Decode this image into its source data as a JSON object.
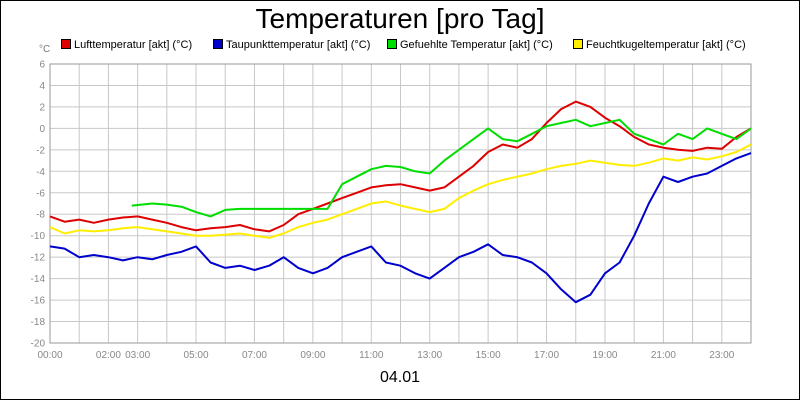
{
  "chart_data": {
    "type": "line",
    "title": "Temperaturen [pro Tag]",
    "unit": "°C",
    "date": "04.01",
    "xlim": [
      0,
      24
    ],
    "ylim": [
      -20,
      6
    ],
    "x_ticks": [
      0,
      2,
      3,
      5,
      7,
      9,
      11,
      13,
      15,
      17,
      19,
      21,
      23
    ],
    "x_tick_labels": [
      "00:00",
      "02:00",
      "03:00",
      "05:00",
      "07:00",
      "09:00",
      "11:00",
      "13:00",
      "15:00",
      "17:00",
      "19:00",
      "21:00",
      "23:00"
    ],
    "y_ticks": [
      6,
      4,
      2,
      0,
      -2,
      -4,
      -6,
      -8,
      -10,
      -12,
      -14,
      -16,
      -18,
      -20
    ],
    "y_tick_labels": [
      "6",
      "4",
      "2",
      "0",
      "-2",
      "-4",
      "-6",
      "-8",
      "-10",
      "-12",
      "-14",
      "-16",
      "-18",
      "-20"
    ],
    "grid": true,
    "legend_position": "top",
    "series": [
      {
        "name": "Lufttemperatur [akt] (°C)",
        "color": "#dd0000",
        "points": [
          [
            0,
            -8.2
          ],
          [
            0.5,
            -8.7
          ],
          [
            1,
            -8.5
          ],
          [
            1.5,
            -8.8
          ],
          [
            2,
            -8.5
          ],
          [
            2.5,
            -8.3
          ],
          [
            3,
            -8.2
          ],
          [
            3.5,
            -8.5
          ],
          [
            4,
            -8.8
          ],
          [
            4.5,
            -9.2
          ],
          [
            5,
            -9.5
          ],
          [
            5.5,
            -9.3
          ],
          [
            6,
            -9.2
          ],
          [
            6.5,
            -9.0
          ],
          [
            7,
            -9.4
          ],
          [
            7.5,
            -9.6
          ],
          [
            8,
            -9.0
          ],
          [
            8.5,
            -8.0
          ],
          [
            9,
            -7.5
          ],
          [
            9.5,
            -7.0
          ],
          [
            10,
            -6.5
          ],
          [
            10.5,
            -6.0
          ],
          [
            11,
            -5.5
          ],
          [
            11.5,
            -5.3
          ],
          [
            12,
            -5.2
          ],
          [
            12.5,
            -5.5
          ],
          [
            13,
            -5.8
          ],
          [
            13.5,
            -5.5
          ],
          [
            14,
            -4.5
          ],
          [
            14.5,
            -3.5
          ],
          [
            15,
            -2.2
          ],
          [
            15.5,
            -1.5
          ],
          [
            16,
            -1.8
          ],
          [
            16.5,
            -1.0
          ],
          [
            17,
            0.5
          ],
          [
            17.5,
            1.8
          ],
          [
            18,
            2.5
          ],
          [
            18.5,
            2.0
          ],
          [
            19,
            1.0
          ],
          [
            19.5,
            0.2
          ],
          [
            20,
            -0.8
          ],
          [
            20.5,
            -1.5
          ],
          [
            21,
            -1.8
          ],
          [
            21.5,
            -2.0
          ],
          [
            22,
            -2.1
          ],
          [
            22.5,
            -1.8
          ],
          [
            23,
            -1.9
          ],
          [
            23.5,
            -0.8
          ],
          [
            24,
            0
          ]
        ]
      },
      {
        "name": "Taupunkttemperatur [akt] (°C)",
        "color": "#0000cc",
        "points": [
          [
            0,
            -11.0
          ],
          [
            0.5,
            -11.2
          ],
          [
            1,
            -12.0
          ],
          [
            1.5,
            -11.8
          ],
          [
            2,
            -12.0
          ],
          [
            2.5,
            -12.3
          ],
          [
            3,
            -12.0
          ],
          [
            3.5,
            -12.2
          ],
          [
            4,
            -11.8
          ],
          [
            4.5,
            -11.5
          ],
          [
            5,
            -11.0
          ],
          [
            5.5,
            -12.5
          ],
          [
            6,
            -13.0
          ],
          [
            6.5,
            -12.8
          ],
          [
            7,
            -13.2
          ],
          [
            7.5,
            -12.8
          ],
          [
            8,
            -12.0
          ],
          [
            8.5,
            -13.0
          ],
          [
            9,
            -13.5
          ],
          [
            9.5,
            -13.0
          ],
          [
            10,
            -12.0
          ],
          [
            10.5,
            -11.5
          ],
          [
            11,
            -11.0
          ],
          [
            11.5,
            -12.5
          ],
          [
            12,
            -12.8
          ],
          [
            12.5,
            -13.5
          ],
          [
            13,
            -14.0
          ],
          [
            13.5,
            -13.0
          ],
          [
            14,
            -12.0
          ],
          [
            14.5,
            -11.5
          ],
          [
            15,
            -10.8
          ],
          [
            15.5,
            -11.8
          ],
          [
            16,
            -12.0
          ],
          [
            16.5,
            -12.5
          ],
          [
            17,
            -13.5
          ],
          [
            17.5,
            -15.0
          ],
          [
            18,
            -16.2
          ],
          [
            18.5,
            -15.5
          ],
          [
            19,
            -13.5
          ],
          [
            19.5,
            -12.5
          ],
          [
            20,
            -10.0
          ],
          [
            20.5,
            -7.0
          ],
          [
            21,
            -4.5
          ],
          [
            21.5,
            -5.0
          ],
          [
            22,
            -4.5
          ],
          [
            22.5,
            -4.2
          ],
          [
            23,
            -3.5
          ],
          [
            23.5,
            -2.8
          ],
          [
            24,
            -2.3
          ]
        ]
      },
      {
        "name": "Gefuehlte Temperatur [akt] (°C)",
        "color": "#00dd00",
        "points": [
          [
            2.8,
            -7.2
          ],
          [
            3.5,
            -7.0
          ],
          [
            4,
            -7.1
          ],
          [
            4.5,
            -7.3
          ],
          [
            5,
            -7.8
          ],
          [
            5.5,
            -8.2
          ],
          [
            6,
            -7.6
          ],
          [
            6.5,
            -7.5
          ],
          [
            9.5,
            -7.5
          ],
          [
            10,
            -5.2
          ],
          [
            10.5,
            -4.5
          ],
          [
            11,
            -3.8
          ],
          [
            11.5,
            -3.5
          ],
          [
            12,
            -3.6
          ],
          [
            12.5,
            -4.0
          ],
          [
            13,
            -4.2
          ],
          [
            13.5,
            -3.0
          ],
          [
            14,
            -2.0
          ],
          [
            14.5,
            -1.0
          ],
          [
            15,
            0.0
          ],
          [
            15.5,
            -1.0
          ],
          [
            16,
            -1.2
          ],
          [
            16.5,
            -0.5
          ],
          [
            17,
            0.2
          ],
          [
            17.5,
            0.5
          ],
          [
            18,
            0.8
          ],
          [
            18.5,
            0.2
          ],
          [
            19,
            0.5
          ],
          [
            19.5,
            0.8
          ],
          [
            20,
            -0.5
          ],
          [
            20.5,
            -1.0
          ],
          [
            21,
            -1.5
          ],
          [
            21.5,
            -0.5
          ],
          [
            22,
            -1.0
          ],
          [
            22.5,
            0.0
          ],
          [
            23,
            -0.5
          ],
          [
            23.5,
            -1.0
          ],
          [
            24,
            0.0
          ]
        ]
      },
      {
        "name": "Feuchtkugeltemperatur [akt] (°C)",
        "color": "#ffee00",
        "points": [
          [
            0,
            -9.2
          ],
          [
            0.5,
            -9.8
          ],
          [
            1,
            -9.5
          ],
          [
            1.5,
            -9.6
          ],
          [
            2,
            -9.5
          ],
          [
            2.5,
            -9.3
          ],
          [
            3,
            -9.2
          ],
          [
            3.5,
            -9.4
          ],
          [
            4,
            -9.6
          ],
          [
            4.5,
            -9.8
          ],
          [
            5,
            -10.0
          ],
          [
            5.5,
            -10.0
          ],
          [
            6,
            -9.9
          ],
          [
            6.5,
            -9.8
          ],
          [
            7,
            -10.0
          ],
          [
            7.5,
            -10.2
          ],
          [
            8,
            -9.8
          ],
          [
            8.5,
            -9.2
          ],
          [
            9,
            -8.8
          ],
          [
            9.5,
            -8.5
          ],
          [
            10,
            -8.0
          ],
          [
            10.5,
            -7.5
          ],
          [
            11,
            -7.0
          ],
          [
            11.5,
            -6.8
          ],
          [
            12,
            -7.2
          ],
          [
            12.5,
            -7.5
          ],
          [
            13,
            -7.8
          ],
          [
            13.5,
            -7.5
          ],
          [
            14,
            -6.5
          ],
          [
            14.5,
            -5.8
          ],
          [
            15,
            -5.2
          ],
          [
            15.5,
            -4.8
          ],
          [
            16,
            -4.5
          ],
          [
            16.5,
            -4.2
          ],
          [
            17,
            -3.8
          ],
          [
            17.5,
            -3.5
          ],
          [
            18,
            -3.3
          ],
          [
            18.5,
            -3.0
          ],
          [
            19,
            -3.2
          ],
          [
            19.5,
            -3.4
          ],
          [
            20,
            -3.5
          ],
          [
            20.5,
            -3.2
          ],
          [
            21,
            -2.8
          ],
          [
            21.5,
            -3.0
          ],
          [
            22,
            -2.7
          ],
          [
            22.5,
            -2.9
          ],
          [
            23,
            -2.6
          ],
          [
            23.5,
            -2.2
          ],
          [
            24,
            -1.5
          ]
        ]
      }
    ]
  }
}
